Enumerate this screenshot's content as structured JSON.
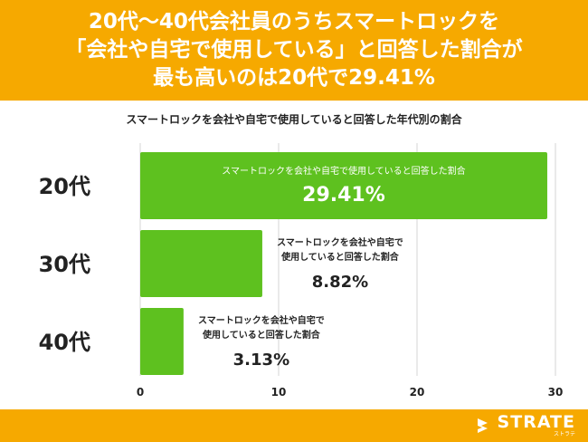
{
  "banner": {
    "lines": [
      "20代〜40代会社員のうちスマートロックを",
      "「会社や自宅で使用している」と回答した割合が",
      "最も高いのは20代で29.41%"
    ]
  },
  "chart_data": {
    "type": "bar",
    "orientation": "horizontal",
    "title": "スマートロックを会社や自宅で使用していると回答した年代別の割合",
    "categories": [
      "20代",
      "30代",
      "40代"
    ],
    "values": [
      29.41,
      8.82,
      3.13
    ],
    "value_labels": [
      "29.41%",
      "8.82%",
      "3.13%"
    ],
    "bar_labels": [
      [
        "スマートロックを会社や自宅で使用していると回答した割合"
      ],
      [
        "スマートロックを会社や自宅で",
        "使用していると回答した割合"
      ],
      [
        "スマートロックを会社や自宅で",
        "使用していると回答した割合"
      ]
    ],
    "xlim": [
      0,
      30
    ],
    "xticks": [
      0,
      10,
      20,
      30
    ],
    "grid": true,
    "bar_color": "#5ec11f"
  },
  "footer": {
    "brand": "STRATE",
    "brand_sub": "ストラテ"
  },
  "colors": {
    "banner": "#f6a900",
    "bar": "#5ec11f",
    "text": "#222222"
  }
}
